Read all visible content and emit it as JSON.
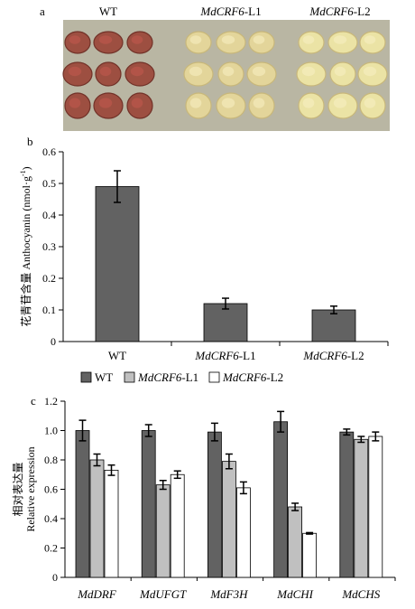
{
  "panel_a": {
    "letter": "a",
    "sample_labels": [
      {
        "gene": "WT",
        "suffix": ""
      },
      {
        "gene": "MdCRF6",
        "suffix": "-L1"
      },
      {
        "gene": "MdCRF6",
        "suffix": "-L2"
      }
    ],
    "callus_colors": [
      "#9c4a3c",
      "#e6d79a",
      "#eee6a6"
    ],
    "background_color": "#b9b6a3"
  },
  "chart_data": [
    {
      "panel": "b",
      "type": "bar",
      "title": "",
      "ylabel": "花青苷含量 Anthocyanin (nmol·g",
      "ylabel_sup": "-1",
      "ylabel_end": ")",
      "xlabel": "",
      "categories": [
        {
          "gene": "WT",
          "suffix": ""
        },
        {
          "gene": "MdCRF6",
          "suffix": "-L1"
        },
        {
          "gene": "MdCRF6",
          "suffix": "-L2"
        }
      ],
      "values": [
        0.49,
        0.12,
        0.1
      ],
      "errors": [
        0.05,
        0.017,
        0.012
      ],
      "ylim": [
        0,
        0.6
      ],
      "yticks": [
        "0",
        "0.1",
        "0.2",
        "0.3",
        "0.4",
        "0.5",
        "0.6"
      ],
      "bar_color": "#626262",
      "grid": false
    },
    {
      "panel": "c",
      "type": "bar",
      "title": "",
      "ylabel_cn": "相对表达量",
      "ylabel_en": "Relative expression",
      "xlabel": "",
      "categories": [
        "MdDRF",
        "MdUFGT",
        "MdF3H",
        "MdCHI",
        "MdCHS"
      ],
      "series": [
        {
          "name": {
            "gene": "WT",
            "suffix": ""
          },
          "color": "#626262",
          "values": [
            1.0,
            1.0,
            0.99,
            1.06,
            0.99
          ],
          "errors": [
            0.07,
            0.04,
            0.06,
            0.07,
            0.02
          ]
        },
        {
          "name": {
            "gene": "MdCRF6",
            "suffix": "-L1"
          },
          "color": "#c0c0c0",
          "values": [
            0.8,
            0.63,
            0.79,
            0.48,
            0.94
          ],
          "errors": [
            0.04,
            0.03,
            0.05,
            0.025,
            0.02
          ]
        },
        {
          "name": {
            "gene": "MdCRF6",
            "suffix": "-L2"
          },
          "color": "#ffffff",
          "values": [
            0.73,
            0.7,
            0.61,
            0.3,
            0.96
          ],
          "errors": [
            0.035,
            0.025,
            0.04,
            0.005,
            0.03
          ]
        }
      ],
      "ylim": [
        0,
        1.2
      ],
      "yticks": [
        "0",
        "0.2",
        "0.4",
        "0.6",
        "0.8",
        "1.0",
        "1.2"
      ],
      "legend_position": "top",
      "grid": false
    }
  ]
}
